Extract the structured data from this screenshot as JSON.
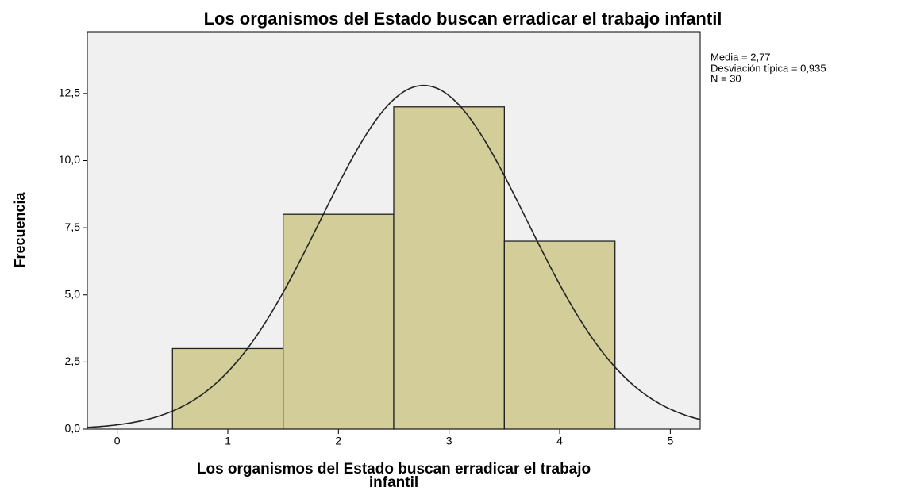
{
  "chart_data": {
    "type": "histogram",
    "title": "Los organismos del Estado buscan erradicar el trabajo infantil",
    "xlabel": [
      "Los organismos del Estado buscan erradicar el trabajo",
      "infantil"
    ],
    "ylabel": "Frecuencia",
    "annotations": [
      "Media = 2,77",
      "Desviación típica = 0,935",
      "N = 30"
    ],
    "bins": [
      0.5,
      1.5,
      2.5,
      3.5,
      4.5
    ],
    "values": [
      3,
      8,
      12,
      7
    ],
    "color": "#d3ce99",
    "normal_curve": {
      "mean": 2.77,
      "sd": 0.935,
      "n": 30
    },
    "xlim": [
      -0.27,
      5.27
    ],
    "ylim": [
      0,
      14.8
    ],
    "xticks": [
      0,
      1,
      2,
      3,
      4,
      5
    ],
    "yticks": [
      {
        "value": 0,
        "label": "0,0"
      },
      {
        "value": 2.5,
        "label": "2,5"
      },
      {
        "value": 5,
        "label": "5,0"
      },
      {
        "value": 7.5,
        "label": "7,5"
      },
      {
        "value": 10,
        "label": "10,0"
      },
      {
        "value": 12.5,
        "label": "12,5"
      }
    ]
  }
}
